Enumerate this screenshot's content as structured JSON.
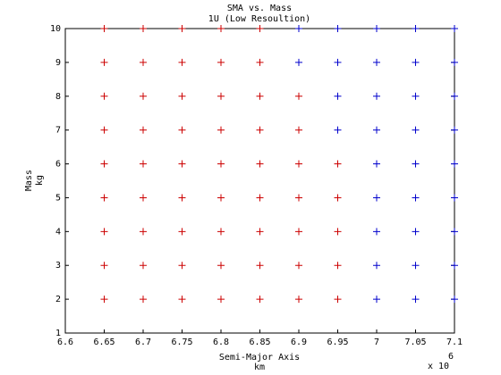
{
  "chart_data": {
    "type": "scatter",
    "title": "SMA vs. Mass",
    "subtitle": "1U (Low Resoultion)",
    "x_label": "Semi-Major Axis",
    "x_unit": "km",
    "y_label": "Mass",
    "y_unit": "kg",
    "x_multiplier_label": "x 10",
    "x_multiplier_exponent": 6,
    "xlim": [
      6.6,
      7.1
    ],
    "ylim": [
      1,
      10
    ],
    "xticks": [
      6.6,
      6.65,
      6.7,
      6.75,
      6.8,
      6.85,
      6.9,
      6.95,
      7,
      7.05,
      7.1
    ],
    "yticks": [
      1,
      2,
      3,
      4,
      5,
      6,
      7,
      8,
      9,
      10
    ],
    "marker": "+",
    "series": [
      {
        "color": "#cc0000",
        "x": [
          6.65,
          6.7,
          6.75,
          6.8,
          6.85,
          6.65,
          6.7,
          6.75,
          6.8,
          6.85,
          6.65,
          6.7,
          6.75,
          6.8,
          6.85,
          6.9,
          6.65,
          6.7,
          6.75,
          6.8,
          6.85,
          6.9,
          6.65,
          6.7,
          6.75,
          6.8,
          6.85,
          6.9,
          6.95,
          6.65,
          6.7,
          6.75,
          6.8,
          6.85,
          6.9,
          6.95,
          6.65,
          6.7,
          6.75,
          6.8,
          6.85,
          6.9,
          6.95,
          6.65,
          6.7,
          6.75,
          6.8,
          6.85,
          6.9,
          6.95,
          6.65,
          6.7,
          6.75,
          6.8,
          6.85,
          6.9,
          6.95
        ],
        "y": [
          10,
          10,
          10,
          10,
          10,
          9,
          9,
          9,
          9,
          9,
          8,
          8,
          8,
          8,
          8,
          8,
          7,
          7,
          7,
          7,
          7,
          7,
          6,
          6,
          6,
          6,
          6,
          6,
          6,
          5,
          5,
          5,
          5,
          5,
          5,
          5,
          4,
          4,
          4,
          4,
          4,
          4,
          4,
          3,
          3,
          3,
          3,
          3,
          3,
          3,
          2,
          2,
          2,
          2,
          2,
          2,
          2
        ]
      },
      {
        "color": "#0000cc",
        "x": [
          6.9,
          6.95,
          7,
          7.05,
          7.1,
          6.9,
          6.95,
          7,
          7.05,
          7.1,
          6.95,
          7,
          7.05,
          7.1,
          6.95,
          7,
          7.05,
          7.1,
          7,
          7.05,
          7.1,
          7,
          7.05,
          7.1,
          7,
          7.05,
          7.1,
          7,
          7.05,
          7.1,
          7,
          7.05,
          7.1
        ],
        "y": [
          10,
          10,
          10,
          10,
          10,
          9,
          9,
          9,
          9,
          9,
          8,
          8,
          8,
          8,
          7,
          7,
          7,
          7,
          6,
          6,
          6,
          5,
          5,
          5,
          4,
          4,
          4,
          3,
          3,
          3,
          2,
          2,
          2
        ]
      }
    ]
  }
}
